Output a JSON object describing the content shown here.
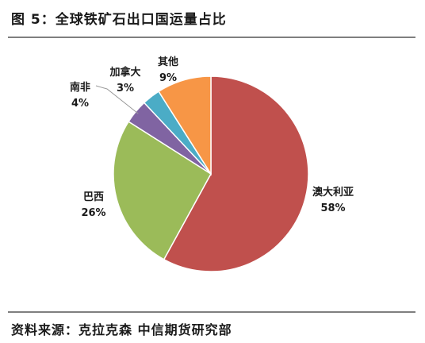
{
  "figure": {
    "title": "图 5：全球铁矿石出口国运量占比",
    "source": "资料来源：克拉克森    中信期货研究部"
  },
  "chart_data": {
    "type": "pie",
    "title": "",
    "start_angle_deg": 0,
    "direction": "clockwise",
    "slices": [
      {
        "name": "澳大利亚",
        "label": "58%",
        "value": 58,
        "color": "#c0504d"
      },
      {
        "name": "巴西",
        "label": "26%",
        "value": 26,
        "color": "#9bbb59"
      },
      {
        "name": "南非",
        "label": "4%",
        "value": 4,
        "color": "#8064a2"
      },
      {
        "name": "加拿大",
        "label": "3%",
        "value": 3,
        "color": "#4bacc6"
      },
      {
        "name": "其他",
        "label": "9%",
        "value": 9,
        "color": "#f79646"
      }
    ],
    "legend": "none"
  }
}
